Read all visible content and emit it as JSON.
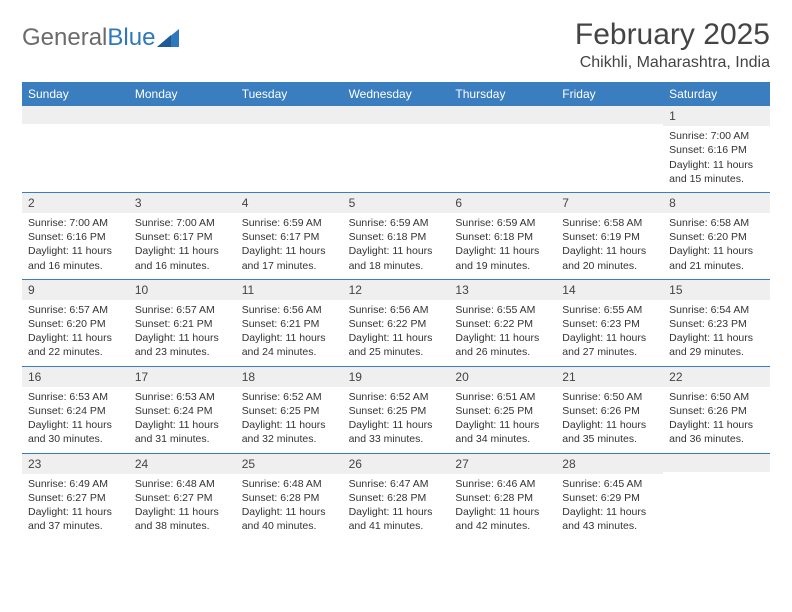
{
  "brand": {
    "part1": "General",
    "part2": "Blue"
  },
  "title": "February 2025",
  "location": "Chikhli, Maharashtra, India",
  "colors": {
    "header_bg": "#3a7ebf",
    "header_text": "#ffffff",
    "daynum_bg": "#efefef",
    "text": "#333333",
    "logo_gray": "#6b6b6b",
    "logo_blue": "#2f78bd"
  },
  "day_headers": [
    "Sunday",
    "Monday",
    "Tuesday",
    "Wednesday",
    "Thursday",
    "Friday",
    "Saturday"
  ],
  "weeks": [
    [
      {
        "empty": true
      },
      {
        "empty": true
      },
      {
        "empty": true
      },
      {
        "empty": true
      },
      {
        "empty": true
      },
      {
        "empty": true
      },
      {
        "day": "1",
        "sunrise": "Sunrise: 7:00 AM",
        "sunset": "Sunset: 6:16 PM",
        "daylight": "Daylight: 11 hours and 15 minutes."
      }
    ],
    [
      {
        "day": "2",
        "sunrise": "Sunrise: 7:00 AM",
        "sunset": "Sunset: 6:16 PM",
        "daylight": "Daylight: 11 hours and 16 minutes."
      },
      {
        "day": "3",
        "sunrise": "Sunrise: 7:00 AM",
        "sunset": "Sunset: 6:17 PM",
        "daylight": "Daylight: 11 hours and 16 minutes."
      },
      {
        "day": "4",
        "sunrise": "Sunrise: 6:59 AM",
        "sunset": "Sunset: 6:17 PM",
        "daylight": "Daylight: 11 hours and 17 minutes."
      },
      {
        "day": "5",
        "sunrise": "Sunrise: 6:59 AM",
        "sunset": "Sunset: 6:18 PM",
        "daylight": "Daylight: 11 hours and 18 minutes."
      },
      {
        "day": "6",
        "sunrise": "Sunrise: 6:59 AM",
        "sunset": "Sunset: 6:18 PM",
        "daylight": "Daylight: 11 hours and 19 minutes."
      },
      {
        "day": "7",
        "sunrise": "Sunrise: 6:58 AM",
        "sunset": "Sunset: 6:19 PM",
        "daylight": "Daylight: 11 hours and 20 minutes."
      },
      {
        "day": "8",
        "sunrise": "Sunrise: 6:58 AM",
        "sunset": "Sunset: 6:20 PM",
        "daylight": "Daylight: 11 hours and 21 minutes."
      }
    ],
    [
      {
        "day": "9",
        "sunrise": "Sunrise: 6:57 AM",
        "sunset": "Sunset: 6:20 PM",
        "daylight": "Daylight: 11 hours and 22 minutes."
      },
      {
        "day": "10",
        "sunrise": "Sunrise: 6:57 AM",
        "sunset": "Sunset: 6:21 PM",
        "daylight": "Daylight: 11 hours and 23 minutes."
      },
      {
        "day": "11",
        "sunrise": "Sunrise: 6:56 AM",
        "sunset": "Sunset: 6:21 PM",
        "daylight": "Daylight: 11 hours and 24 minutes."
      },
      {
        "day": "12",
        "sunrise": "Sunrise: 6:56 AM",
        "sunset": "Sunset: 6:22 PM",
        "daylight": "Daylight: 11 hours and 25 minutes."
      },
      {
        "day": "13",
        "sunrise": "Sunrise: 6:55 AM",
        "sunset": "Sunset: 6:22 PM",
        "daylight": "Daylight: 11 hours and 26 minutes."
      },
      {
        "day": "14",
        "sunrise": "Sunrise: 6:55 AM",
        "sunset": "Sunset: 6:23 PM",
        "daylight": "Daylight: 11 hours and 27 minutes."
      },
      {
        "day": "15",
        "sunrise": "Sunrise: 6:54 AM",
        "sunset": "Sunset: 6:23 PM",
        "daylight": "Daylight: 11 hours and 29 minutes."
      }
    ],
    [
      {
        "day": "16",
        "sunrise": "Sunrise: 6:53 AM",
        "sunset": "Sunset: 6:24 PM",
        "daylight": "Daylight: 11 hours and 30 minutes."
      },
      {
        "day": "17",
        "sunrise": "Sunrise: 6:53 AM",
        "sunset": "Sunset: 6:24 PM",
        "daylight": "Daylight: 11 hours and 31 minutes."
      },
      {
        "day": "18",
        "sunrise": "Sunrise: 6:52 AM",
        "sunset": "Sunset: 6:25 PM",
        "daylight": "Daylight: 11 hours and 32 minutes."
      },
      {
        "day": "19",
        "sunrise": "Sunrise: 6:52 AM",
        "sunset": "Sunset: 6:25 PM",
        "daylight": "Daylight: 11 hours and 33 minutes."
      },
      {
        "day": "20",
        "sunrise": "Sunrise: 6:51 AM",
        "sunset": "Sunset: 6:25 PM",
        "daylight": "Daylight: 11 hours and 34 minutes."
      },
      {
        "day": "21",
        "sunrise": "Sunrise: 6:50 AM",
        "sunset": "Sunset: 6:26 PM",
        "daylight": "Daylight: 11 hours and 35 minutes."
      },
      {
        "day": "22",
        "sunrise": "Sunrise: 6:50 AM",
        "sunset": "Sunset: 6:26 PM",
        "daylight": "Daylight: 11 hours and 36 minutes."
      }
    ],
    [
      {
        "day": "23",
        "sunrise": "Sunrise: 6:49 AM",
        "sunset": "Sunset: 6:27 PM",
        "daylight": "Daylight: 11 hours and 37 minutes."
      },
      {
        "day": "24",
        "sunrise": "Sunrise: 6:48 AM",
        "sunset": "Sunset: 6:27 PM",
        "daylight": "Daylight: 11 hours and 38 minutes."
      },
      {
        "day": "25",
        "sunrise": "Sunrise: 6:48 AM",
        "sunset": "Sunset: 6:28 PM",
        "daylight": "Daylight: 11 hours and 40 minutes."
      },
      {
        "day": "26",
        "sunrise": "Sunrise: 6:47 AM",
        "sunset": "Sunset: 6:28 PM",
        "daylight": "Daylight: 11 hours and 41 minutes."
      },
      {
        "day": "27",
        "sunrise": "Sunrise: 6:46 AM",
        "sunset": "Sunset: 6:28 PM",
        "daylight": "Daylight: 11 hours and 42 minutes."
      },
      {
        "day": "28",
        "sunrise": "Sunrise: 6:45 AM",
        "sunset": "Sunset: 6:29 PM",
        "daylight": "Daylight: 11 hours and 43 minutes."
      },
      {
        "empty": true
      }
    ]
  ]
}
